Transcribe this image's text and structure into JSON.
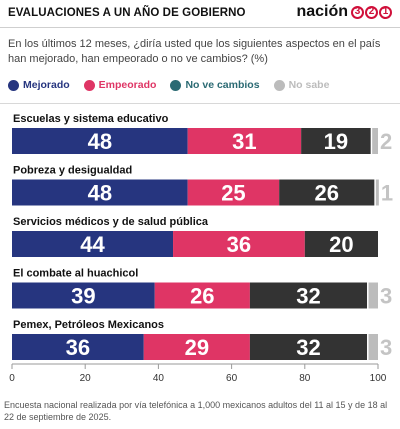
{
  "header": {
    "title": "EVALUACIONES A UN AÑO DE GOBIERNO",
    "brand_word": "nación",
    "brand_digits": [
      "3",
      "2",
      "1"
    ]
  },
  "question": "En los últimos 12 meses, ¿diría usted que los siguientes aspectos en el país han mejorado, han empeorado o no ve cambios? (%)",
  "colors": {
    "mejorado": "#26357f",
    "empeorado": "#df3565",
    "no_ve_cambios": "#333333",
    "no_sabe": "#bcbcbc",
    "legend_no_ve_cambios": "#2b6a73"
  },
  "chart_data": {
    "type": "bar",
    "orientation": "horizontal",
    "stacked": true,
    "categories": [
      "Escuelas y sistema educativo",
      "Pobreza y desigualdad",
      "Servicios médicos y de salud pública",
      "El combate al huachicol",
      "Pemex, Petróleos Mexicanos"
    ],
    "series": [
      {
        "name": "Mejorado",
        "values": [
          48,
          48,
          44,
          39,
          36
        ]
      },
      {
        "name": "Empeorado",
        "values": [
          31,
          25,
          36,
          26,
          29
        ]
      },
      {
        "name": "No ve cambios",
        "values": [
          19,
          26,
          20,
          32,
          32
        ]
      },
      {
        "name": "No sabe",
        "values": [
          2,
          1,
          null,
          3,
          3
        ]
      }
    ],
    "xlim": [
      0,
      100
    ],
    "xticks": [
      0,
      20,
      40,
      60,
      80,
      100
    ],
    "legend_position": "top-left",
    "grid": false
  },
  "footnote": "Encuesta nacional realizada por vía telefónica a 1,000 mexicanos adultos del 11 al 15 y de 18 al 22 de septiembre de 2025."
}
